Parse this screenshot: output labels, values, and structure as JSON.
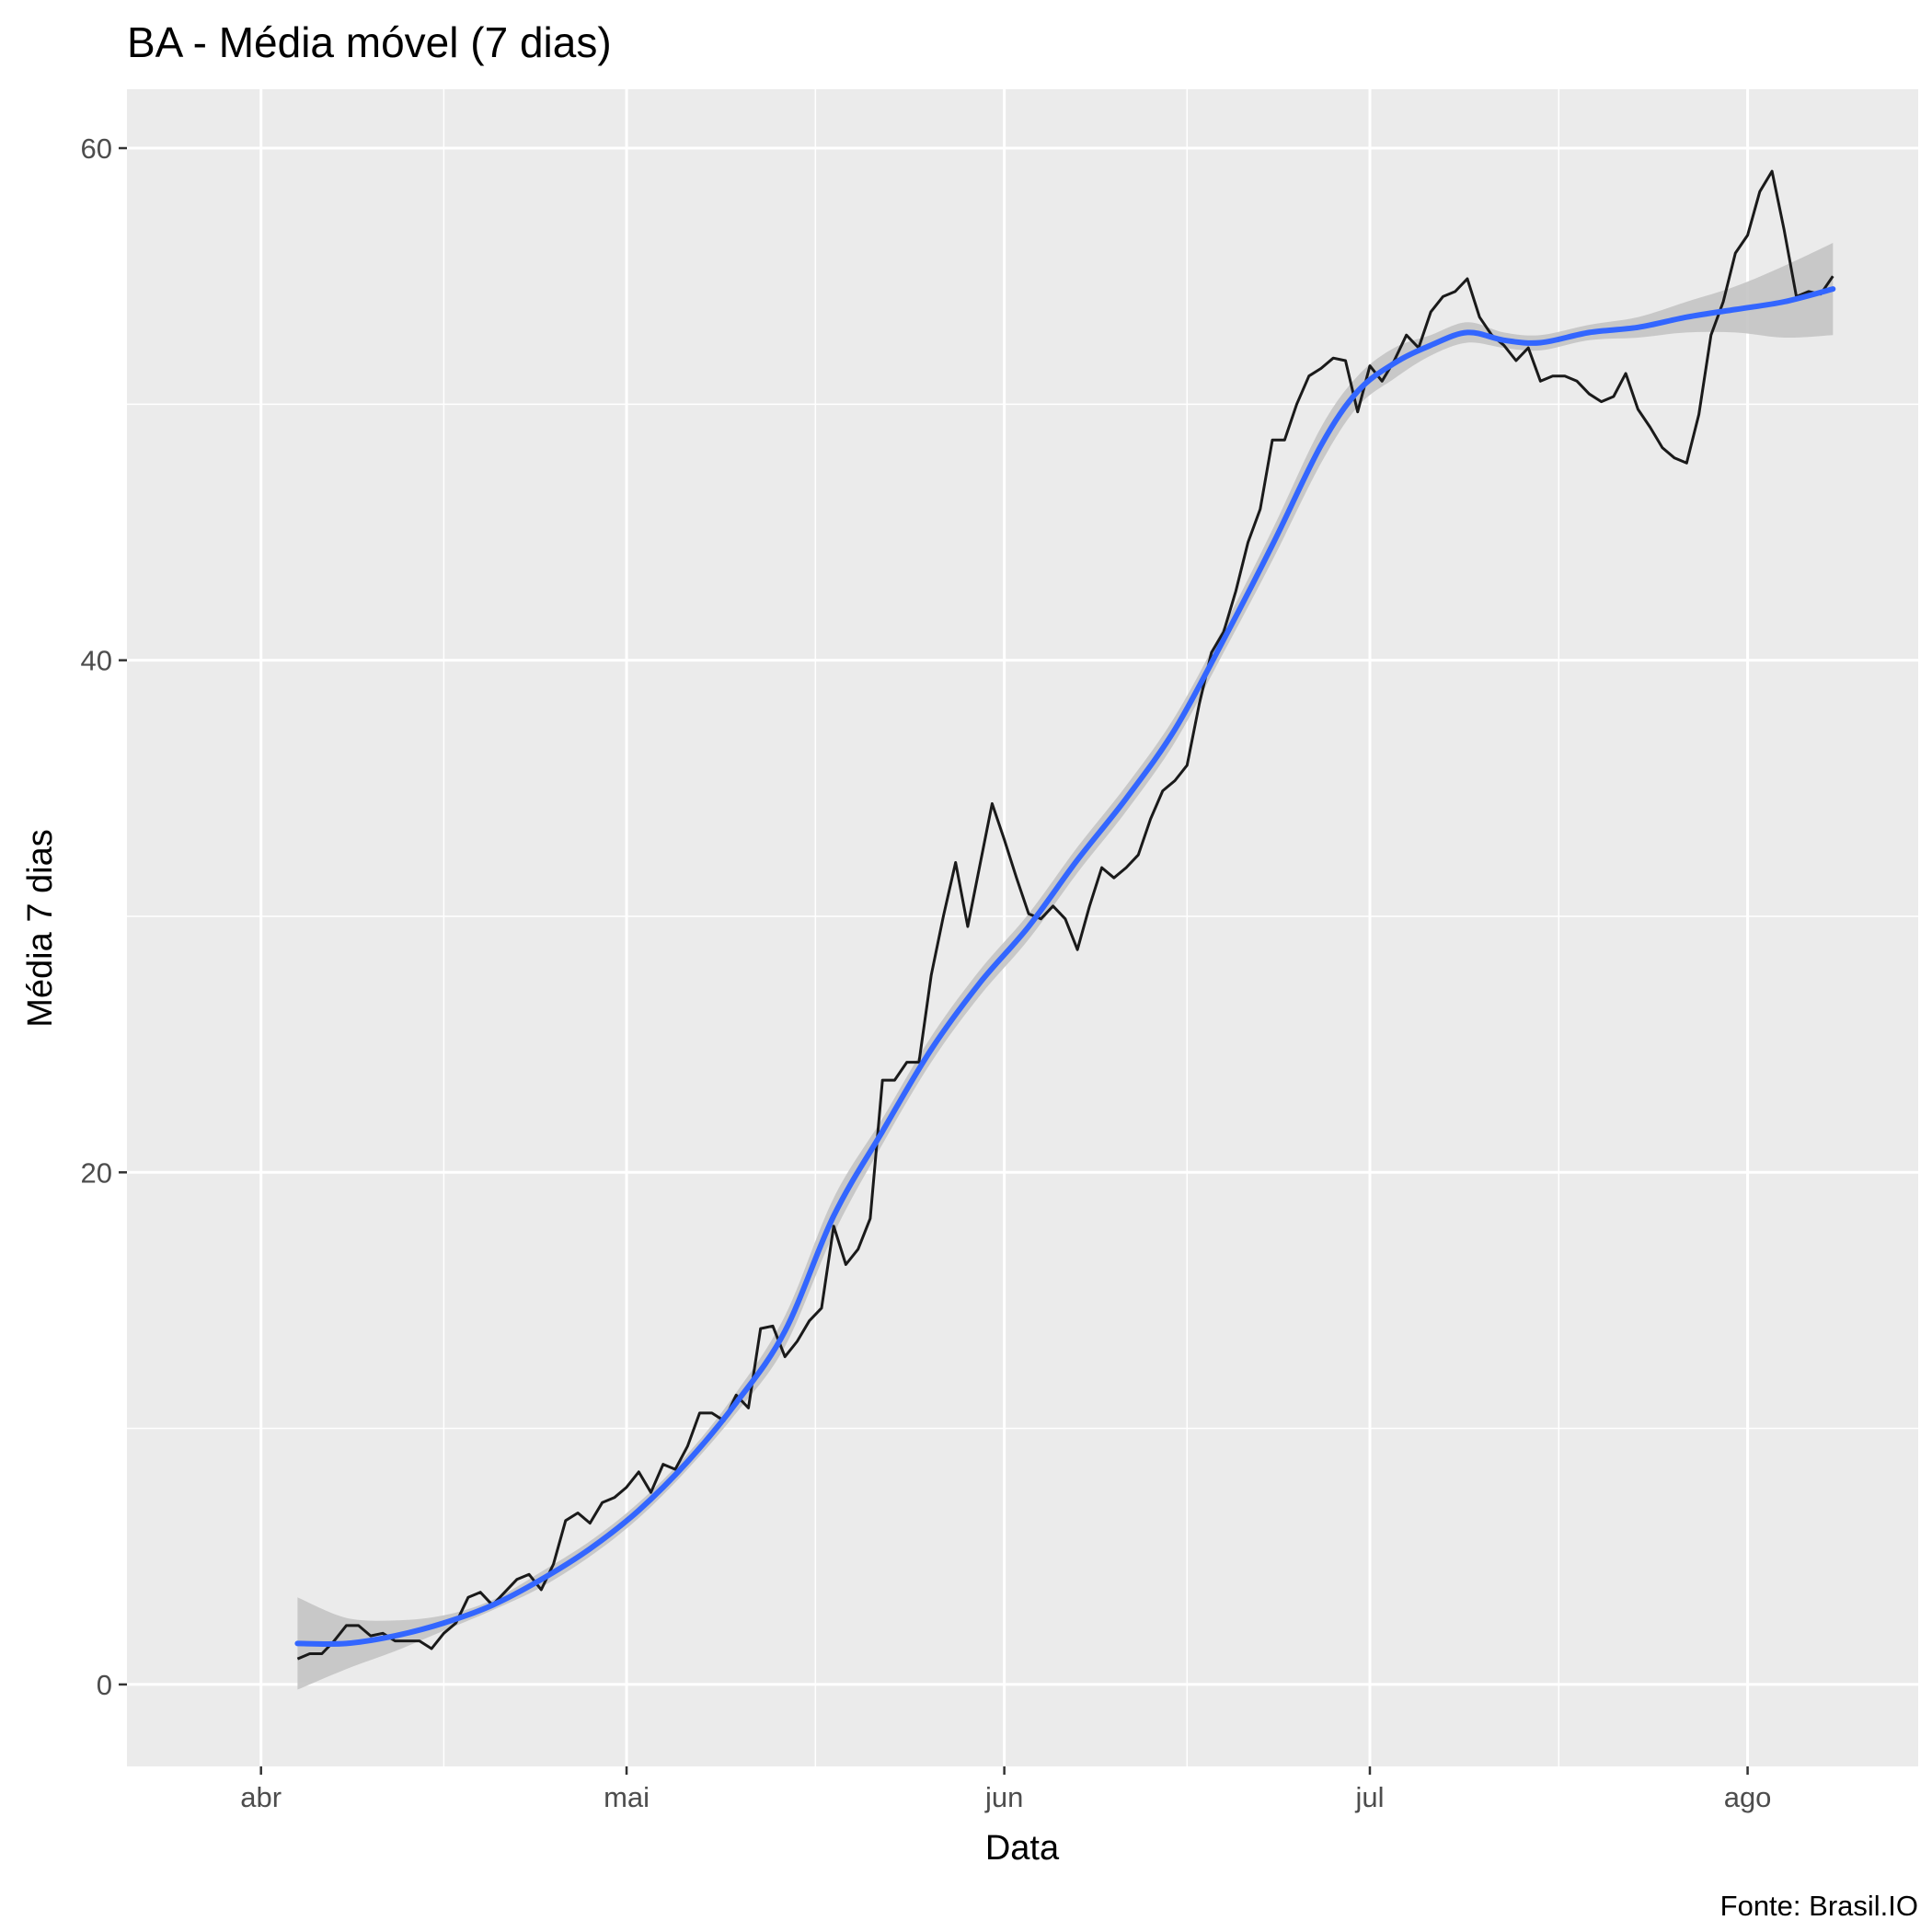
{
  "chart_data": {
    "type": "line",
    "title": "BA - Média móvel (7 dias)",
    "xlabel": "Data",
    "ylabel": "Média 7 dias",
    "caption": "Fonte: Brasil.IO",
    "x_ticks": [
      {
        "label": "abr",
        "date": "2020-04-01"
      },
      {
        "label": "mai",
        "date": "2020-05-01"
      },
      {
        "label": "jun",
        "date": "2020-06-01"
      },
      {
        "label": "jul",
        "date": "2020-07-01"
      },
      {
        "label": "ago",
        "date": "2020-08-01"
      }
    ],
    "y_ticks": [
      0,
      20,
      40,
      60
    ],
    "xlim": [
      "2020-03-21",
      "2020-08-15"
    ],
    "ylim": [
      -3.2,
      62.3
    ],
    "grid": true,
    "colors": {
      "panel": "#ebebeb",
      "grid": "#ffffff",
      "line": "#1a1a1a",
      "smooth": "#3366ff",
      "band": "#c4c4c4"
    },
    "series": [
      {
        "style": "line",
        "points": [
          [
            "2020-04-04",
            1.0
          ],
          [
            "2020-04-05",
            1.2
          ],
          [
            "2020-04-06",
            1.2
          ],
          [
            "2020-04-07",
            1.7
          ],
          [
            "2020-04-08",
            2.3
          ],
          [
            "2020-04-09",
            2.3
          ],
          [
            "2020-04-10",
            1.9
          ],
          [
            "2020-04-11",
            2.0
          ],
          [
            "2020-04-12",
            1.7
          ],
          [
            "2020-04-13",
            1.7
          ],
          [
            "2020-04-14",
            1.7
          ],
          [
            "2020-04-15",
            1.4
          ],
          [
            "2020-04-16",
            2.0
          ],
          [
            "2020-04-17",
            2.4
          ],
          [
            "2020-04-18",
            3.4
          ],
          [
            "2020-04-19",
            3.6
          ],
          [
            "2020-04-20",
            3.1
          ],
          [
            "2020-04-21",
            3.6
          ],
          [
            "2020-04-22",
            4.1
          ],
          [
            "2020-04-23",
            4.3
          ],
          [
            "2020-04-24",
            3.7
          ],
          [
            "2020-04-25",
            4.7
          ],
          [
            "2020-04-26",
            6.4
          ],
          [
            "2020-04-27",
            6.7
          ],
          [
            "2020-04-28",
            6.3
          ],
          [
            "2020-04-29",
            7.1
          ],
          [
            "2020-04-30",
            7.3
          ],
          [
            "2020-05-01",
            7.7
          ],
          [
            "2020-05-02",
            8.3
          ],
          [
            "2020-05-03",
            7.5
          ],
          [
            "2020-05-04",
            8.6
          ],
          [
            "2020-05-05",
            8.4
          ],
          [
            "2020-05-06",
            9.3
          ],
          [
            "2020-05-07",
            10.6
          ],
          [
            "2020-05-08",
            10.6
          ],
          [
            "2020-05-09",
            10.3
          ],
          [
            "2020-05-10",
            11.3
          ],
          [
            "2020-05-11",
            10.8
          ],
          [
            "2020-05-12",
            13.9
          ],
          [
            "2020-05-13",
            14.0
          ],
          [
            "2020-05-14",
            12.8
          ],
          [
            "2020-05-15",
            13.4
          ],
          [
            "2020-05-16",
            14.2
          ],
          [
            "2020-05-17",
            14.7
          ],
          [
            "2020-05-18",
            17.9
          ],
          [
            "2020-05-19",
            16.4
          ],
          [
            "2020-05-20",
            17.0
          ],
          [
            "2020-05-21",
            18.2
          ],
          [
            "2020-05-22",
            23.6
          ],
          [
            "2020-05-23",
            23.6
          ],
          [
            "2020-05-24",
            24.3
          ],
          [
            "2020-05-25",
            24.3
          ],
          [
            "2020-05-26",
            27.7
          ],
          [
            "2020-05-27",
            30.0
          ],
          [
            "2020-05-28",
            32.1
          ],
          [
            "2020-05-29",
            29.6
          ],
          [
            "2020-05-30",
            32.0
          ],
          [
            "2020-05-31",
            34.4
          ],
          [
            "2020-06-01",
            33.0
          ],
          [
            "2020-06-02",
            31.5
          ],
          [
            "2020-06-03",
            30.1
          ],
          [
            "2020-06-04",
            29.9
          ],
          [
            "2020-06-05",
            30.4
          ],
          [
            "2020-06-06",
            29.9
          ],
          [
            "2020-06-07",
            28.7
          ],
          [
            "2020-06-08",
            30.4
          ],
          [
            "2020-06-09",
            31.9
          ],
          [
            "2020-06-10",
            31.5
          ],
          [
            "2020-06-11",
            31.9
          ],
          [
            "2020-06-12",
            32.4
          ],
          [
            "2020-06-13",
            33.8
          ],
          [
            "2020-06-14",
            34.9
          ],
          [
            "2020-06-15",
            35.3
          ],
          [
            "2020-06-16",
            35.9
          ],
          [
            "2020-06-17",
            38.3
          ],
          [
            "2020-06-18",
            40.3
          ],
          [
            "2020-06-19",
            41.1
          ],
          [
            "2020-06-20",
            42.7
          ],
          [
            "2020-06-21",
            44.6
          ],
          [
            "2020-06-22",
            45.9
          ],
          [
            "2020-06-23",
            48.6
          ],
          [
            "2020-06-24",
            48.6
          ],
          [
            "2020-06-25",
            50.0
          ],
          [
            "2020-06-26",
            51.1
          ],
          [
            "2020-06-27",
            51.4
          ],
          [
            "2020-06-28",
            51.8
          ],
          [
            "2020-06-29",
            51.7
          ],
          [
            "2020-06-30",
            49.7
          ],
          [
            "2020-07-01",
            51.5
          ],
          [
            "2020-07-02",
            50.9
          ],
          [
            "2020-07-03",
            51.7
          ],
          [
            "2020-07-04",
            52.7
          ],
          [
            "2020-07-05",
            52.2
          ],
          [
            "2020-07-06",
            53.6
          ],
          [
            "2020-07-07",
            54.2
          ],
          [
            "2020-07-08",
            54.4
          ],
          [
            "2020-07-09",
            54.9
          ],
          [
            "2020-07-10",
            53.4
          ],
          [
            "2020-07-11",
            52.7
          ],
          [
            "2020-07-12",
            52.3
          ],
          [
            "2020-07-13",
            51.7
          ],
          [
            "2020-07-14",
            52.2
          ],
          [
            "2020-07-15",
            50.9
          ],
          [
            "2020-07-16",
            51.1
          ],
          [
            "2020-07-17",
            51.1
          ],
          [
            "2020-07-18",
            50.9
          ],
          [
            "2020-07-19",
            50.4
          ],
          [
            "2020-07-20",
            50.1
          ],
          [
            "2020-07-21",
            50.3
          ],
          [
            "2020-07-22",
            51.2
          ],
          [
            "2020-07-23",
            49.8
          ],
          [
            "2020-07-24",
            49.1
          ],
          [
            "2020-07-25",
            48.3
          ],
          [
            "2020-07-26",
            47.9
          ],
          [
            "2020-07-27",
            47.7
          ],
          [
            "2020-07-28",
            49.6
          ],
          [
            "2020-07-29",
            52.7
          ],
          [
            "2020-07-30",
            54.0
          ],
          [
            "2020-07-31",
            55.9
          ],
          [
            "2020-08-01",
            56.6
          ],
          [
            "2020-08-02",
            58.3
          ],
          [
            "2020-08-03",
            59.1
          ],
          [
            "2020-08-04",
            56.8
          ],
          [
            "2020-08-05",
            54.2
          ],
          [
            "2020-08-06",
            54.4
          ],
          [
            "2020-08-07",
            54.3
          ],
          [
            "2020-08-08",
            55.0
          ]
        ]
      },
      {
        "style": "smooth",
        "points": [
          [
            "2020-04-04",
            1.6
          ],
          [
            "2020-04-08",
            1.6
          ],
          [
            "2020-04-12",
            1.9
          ],
          [
            "2020-04-16",
            2.4
          ],
          [
            "2020-04-20",
            3.1
          ],
          [
            "2020-04-24",
            4.1
          ],
          [
            "2020-04-28",
            5.3
          ],
          [
            "2020-05-02",
            6.8
          ],
          [
            "2020-05-06",
            8.7
          ],
          [
            "2020-05-10",
            11.0
          ],
          [
            "2020-05-14",
            13.8
          ],
          [
            "2020-05-18",
            18.3
          ],
          [
            "2020-05-22",
            21.6
          ],
          [
            "2020-05-26",
            24.8
          ],
          [
            "2020-05-30",
            27.4
          ],
          [
            "2020-06-03",
            29.6
          ],
          [
            "2020-06-07",
            32.2
          ],
          [
            "2020-06-11",
            34.6
          ],
          [
            "2020-06-15",
            37.3
          ],
          [
            "2020-06-19",
            40.8
          ],
          [
            "2020-06-23",
            44.5
          ],
          [
            "2020-06-27",
            48.4
          ],
          [
            "2020-06-30",
            50.5
          ],
          [
            "2020-07-03",
            51.6
          ],
          [
            "2020-07-06",
            52.3
          ],
          [
            "2020-07-09",
            52.8
          ],
          [
            "2020-07-12",
            52.5
          ],
          [
            "2020-07-15",
            52.4
          ],
          [
            "2020-07-19",
            52.8
          ],
          [
            "2020-07-23",
            53.0
          ],
          [
            "2020-07-27",
            53.4
          ],
          [
            "2020-07-31",
            53.7
          ],
          [
            "2020-08-04",
            54.0
          ],
          [
            "2020-08-08",
            54.5
          ]
        ],
        "band_lower": [
          -0.2,
          0.6,
          1.3,
          2.1,
          2.9,
          3.8,
          5.0,
          6.5,
          8.4,
          10.6,
          13.2,
          17.6,
          21.1,
          24.3,
          26.9,
          29.1,
          31.7,
          34.1,
          36.8,
          40.3,
          43.9,
          47.7,
          49.9,
          51.0,
          51.9,
          52.4,
          52.2,
          52.1,
          52.5,
          52.6,
          52.8,
          52.8,
          52.6,
          52.7
        ],
        "band_upper": [
          3.4,
          2.6,
          2.5,
          2.7,
          3.3,
          4.4,
          5.6,
          7.1,
          9.0,
          11.4,
          14.4,
          19.0,
          22.1,
          25.3,
          27.9,
          30.1,
          32.7,
          35.1,
          37.8,
          41.3,
          45.1,
          49.1,
          51.1,
          52.2,
          52.7,
          53.2,
          52.8,
          52.7,
          53.1,
          53.4,
          54.0,
          54.6,
          55.4,
          56.3
        ]
      }
    ]
  }
}
